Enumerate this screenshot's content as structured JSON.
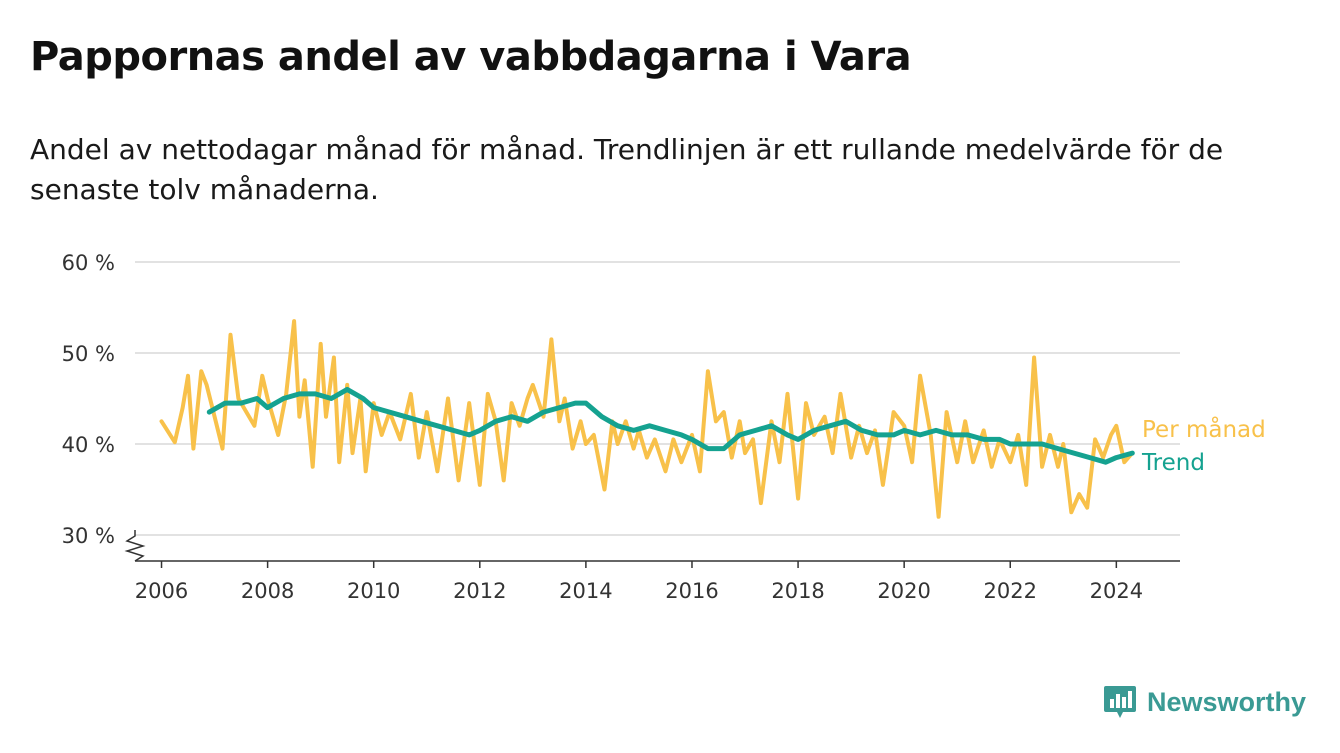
{
  "title": "Pappornas andel av vabbdagarna i Vara",
  "subtitle": "Andel av nettodagar månad för månad. Trendlinjen är ett rullande medelvärde för de senaste tolv månaderna.",
  "brand": {
    "name": "Newsworthy",
    "icon": "newsworthy-logo-icon",
    "color": "#3a9a94"
  },
  "chart_data": {
    "type": "line",
    "title": "Pappornas andel av vabbdagarna i Vara",
    "xlabel": "",
    "ylabel": "",
    "xlim": [
      2005.5,
      2025.2
    ],
    "ylim": [
      27,
      60
    ],
    "y_axis_break": true,
    "grid": "horizontal",
    "legend_placement": "right, inline at line ends",
    "y_ticks": [
      {
        "value": 30,
        "label": "30 %"
      },
      {
        "value": 40,
        "label": "40 %"
      },
      {
        "value": 50,
        "label": "50 %"
      },
      {
        "value": 60,
        "label": "60 %"
      }
    ],
    "x_ticks": [
      {
        "value": 2006,
        "label": "2006"
      },
      {
        "value": 2008,
        "label": "2008"
      },
      {
        "value": 2010,
        "label": "2010"
      },
      {
        "value": 2012,
        "label": "2012"
      },
      {
        "value": 2014,
        "label": "2014"
      },
      {
        "value": 2016,
        "label": "2016"
      },
      {
        "value": 2018,
        "label": "2018"
      },
      {
        "value": 2020,
        "label": "2020"
      },
      {
        "value": 2022,
        "label": "2022"
      },
      {
        "value": 2024,
        "label": "2024"
      }
    ],
    "series": [
      {
        "name": "Per månad",
        "color": "#f8c14a",
        "x": [
          2006.0,
          2006.25,
          2006.4,
          2006.5,
          2006.6,
          2006.75,
          2006.85,
          2007.0,
          2007.15,
          2007.3,
          2007.45,
          2007.6,
          2007.75,
          2007.9,
          2008.0,
          2008.2,
          2008.35,
          2008.5,
          2008.6,
          2008.7,
          2008.85,
          2009.0,
          2009.1,
          2009.25,
          2009.35,
          2009.5,
          2009.6,
          2009.75,
          2009.85,
          2010.0,
          2010.15,
          2010.3,
          2010.5,
          2010.7,
          2010.85,
          2011.0,
          2011.2,
          2011.4,
          2011.6,
          2011.8,
          2012.0,
          2012.15,
          2012.3,
          2012.45,
          2012.6,
          2012.75,
          2012.9,
          2013.0,
          2013.2,
          2013.35,
          2013.5,
          2013.6,
          2013.75,
          2013.9,
          2014.0,
          2014.15,
          2014.35,
          2014.5,
          2014.6,
          2014.75,
          2014.9,
          2015.0,
          2015.15,
          2015.3,
          2015.5,
          2015.65,
          2015.8,
          2016.0,
          2016.15,
          2016.3,
          2016.45,
          2016.6,
          2016.75,
          2016.9,
          2017.0,
          2017.15,
          2017.3,
          2017.5,
          2017.65,
          2017.8,
          2018.0,
          2018.15,
          2018.3,
          2018.5,
          2018.65,
          2018.8,
          2019.0,
          2019.15,
          2019.3,
          2019.45,
          2019.6,
          2019.8,
          2020.0,
          2020.15,
          2020.3,
          2020.5,
          2020.65,
          2020.8,
          2021.0,
          2021.15,
          2021.3,
          2021.5,
          2021.65,
          2021.8,
          2022.0,
          2022.15,
          2022.3,
          2022.45,
          2022.6,
          2022.75,
          2022.9,
          2023.0,
          2023.15,
          2023.3,
          2023.45,
          2023.6,
          2023.75,
          2023.9,
          2024.0,
          2024.15,
          2024.3
        ],
        "values": [
          42.5,
          40.2,
          44.0,
          47.5,
          39.5,
          48.0,
          46.5,
          43.0,
          39.5,
          52.0,
          45.0,
          43.5,
          42.0,
          47.5,
          45.0,
          41.0,
          45.5,
          53.5,
          43.0,
          47.0,
          37.5,
          51.0,
          43.0,
          49.5,
          38.0,
          46.5,
          39.0,
          45.0,
          37.0,
          44.5,
          41.0,
          43.5,
          40.5,
          45.5,
          38.5,
          43.5,
          37.0,
          45.0,
          36.0,
          44.5,
          35.5,
          45.5,
          42.5,
          36.0,
          44.5,
          42.0,
          45.0,
          46.5,
          43.0,
          51.5,
          42.5,
          45.0,
          39.5,
          42.5,
          40.0,
          41.0,
          35.0,
          42.5,
          40.0,
          42.5,
          39.5,
          41.5,
          38.5,
          40.5,
          37.0,
          40.5,
          38.0,
          41.0,
          37.0,
          48.0,
          42.5,
          43.5,
          38.5,
          42.5,
          39.0,
          40.5,
          33.5,
          42.5,
          38.0,
          45.5,
          34.0,
          44.5,
          41.0,
          43.0,
          39.0,
          45.5,
          38.5,
          42.0,
          39.0,
          41.5,
          35.5,
          43.5,
          42.0,
          38.0,
          47.5,
          41.0,
          32.0,
          43.5,
          38.0,
          42.5,
          38.0,
          41.5,
          37.5,
          40.5,
          38.0,
          41.0,
          35.5,
          49.5,
          37.5,
          41.0,
          37.5,
          40.0,
          32.5,
          34.5,
          33.0,
          40.5,
          38.5,
          41.0,
          42.0,
          38.0,
          39.0
        ]
      },
      {
        "name": "Trend",
        "color": "#15a290",
        "x": [
          2006.9,
          2007.2,
          2007.5,
          2007.8,
          2008.0,
          2008.3,
          2008.6,
          2008.9,
          2009.2,
          2009.5,
          2009.8,
          2010.0,
          2010.3,
          2010.6,
          2010.9,
          2011.2,
          2011.5,
          2011.8,
          2012.0,
          2012.3,
          2012.6,
          2012.9,
          2013.2,
          2013.5,
          2013.8,
          2014.0,
          2014.3,
          2014.6,
          2014.9,
          2015.2,
          2015.5,
          2015.8,
          2016.0,
          2016.3,
          2016.6,
          2016.9,
          2017.2,
          2017.5,
          2017.8,
          2018.0,
          2018.3,
          2018.6,
          2018.9,
          2019.2,
          2019.5,
          2019.8,
          2020.0,
          2020.3,
          2020.6,
          2020.9,
          2021.2,
          2021.5,
          2021.8,
          2022.0,
          2022.3,
          2022.6,
          2022.9,
          2023.2,
          2023.5,
          2023.8,
          2024.0,
          2024.3
        ],
        "values": [
          43.5,
          44.5,
          44.5,
          45.0,
          44.0,
          45.0,
          45.5,
          45.5,
          45.0,
          46.0,
          45.0,
          44.0,
          43.5,
          43.0,
          42.5,
          42.0,
          41.5,
          41.0,
          41.5,
          42.5,
          43.0,
          42.5,
          43.5,
          44.0,
          44.5,
          44.5,
          43.0,
          42.0,
          41.5,
          42.0,
          41.5,
          41.0,
          40.5,
          39.5,
          39.5,
          41.0,
          41.5,
          42.0,
          41.0,
          40.5,
          41.5,
          42.0,
          42.5,
          41.5,
          41.0,
          41.0,
          41.5,
          41.0,
          41.5,
          41.0,
          41.0,
          40.5,
          40.5,
          40.0,
          40.0,
          40.0,
          39.5,
          39.0,
          38.5,
          38.0,
          38.5,
          39.0
        ]
      }
    ]
  }
}
